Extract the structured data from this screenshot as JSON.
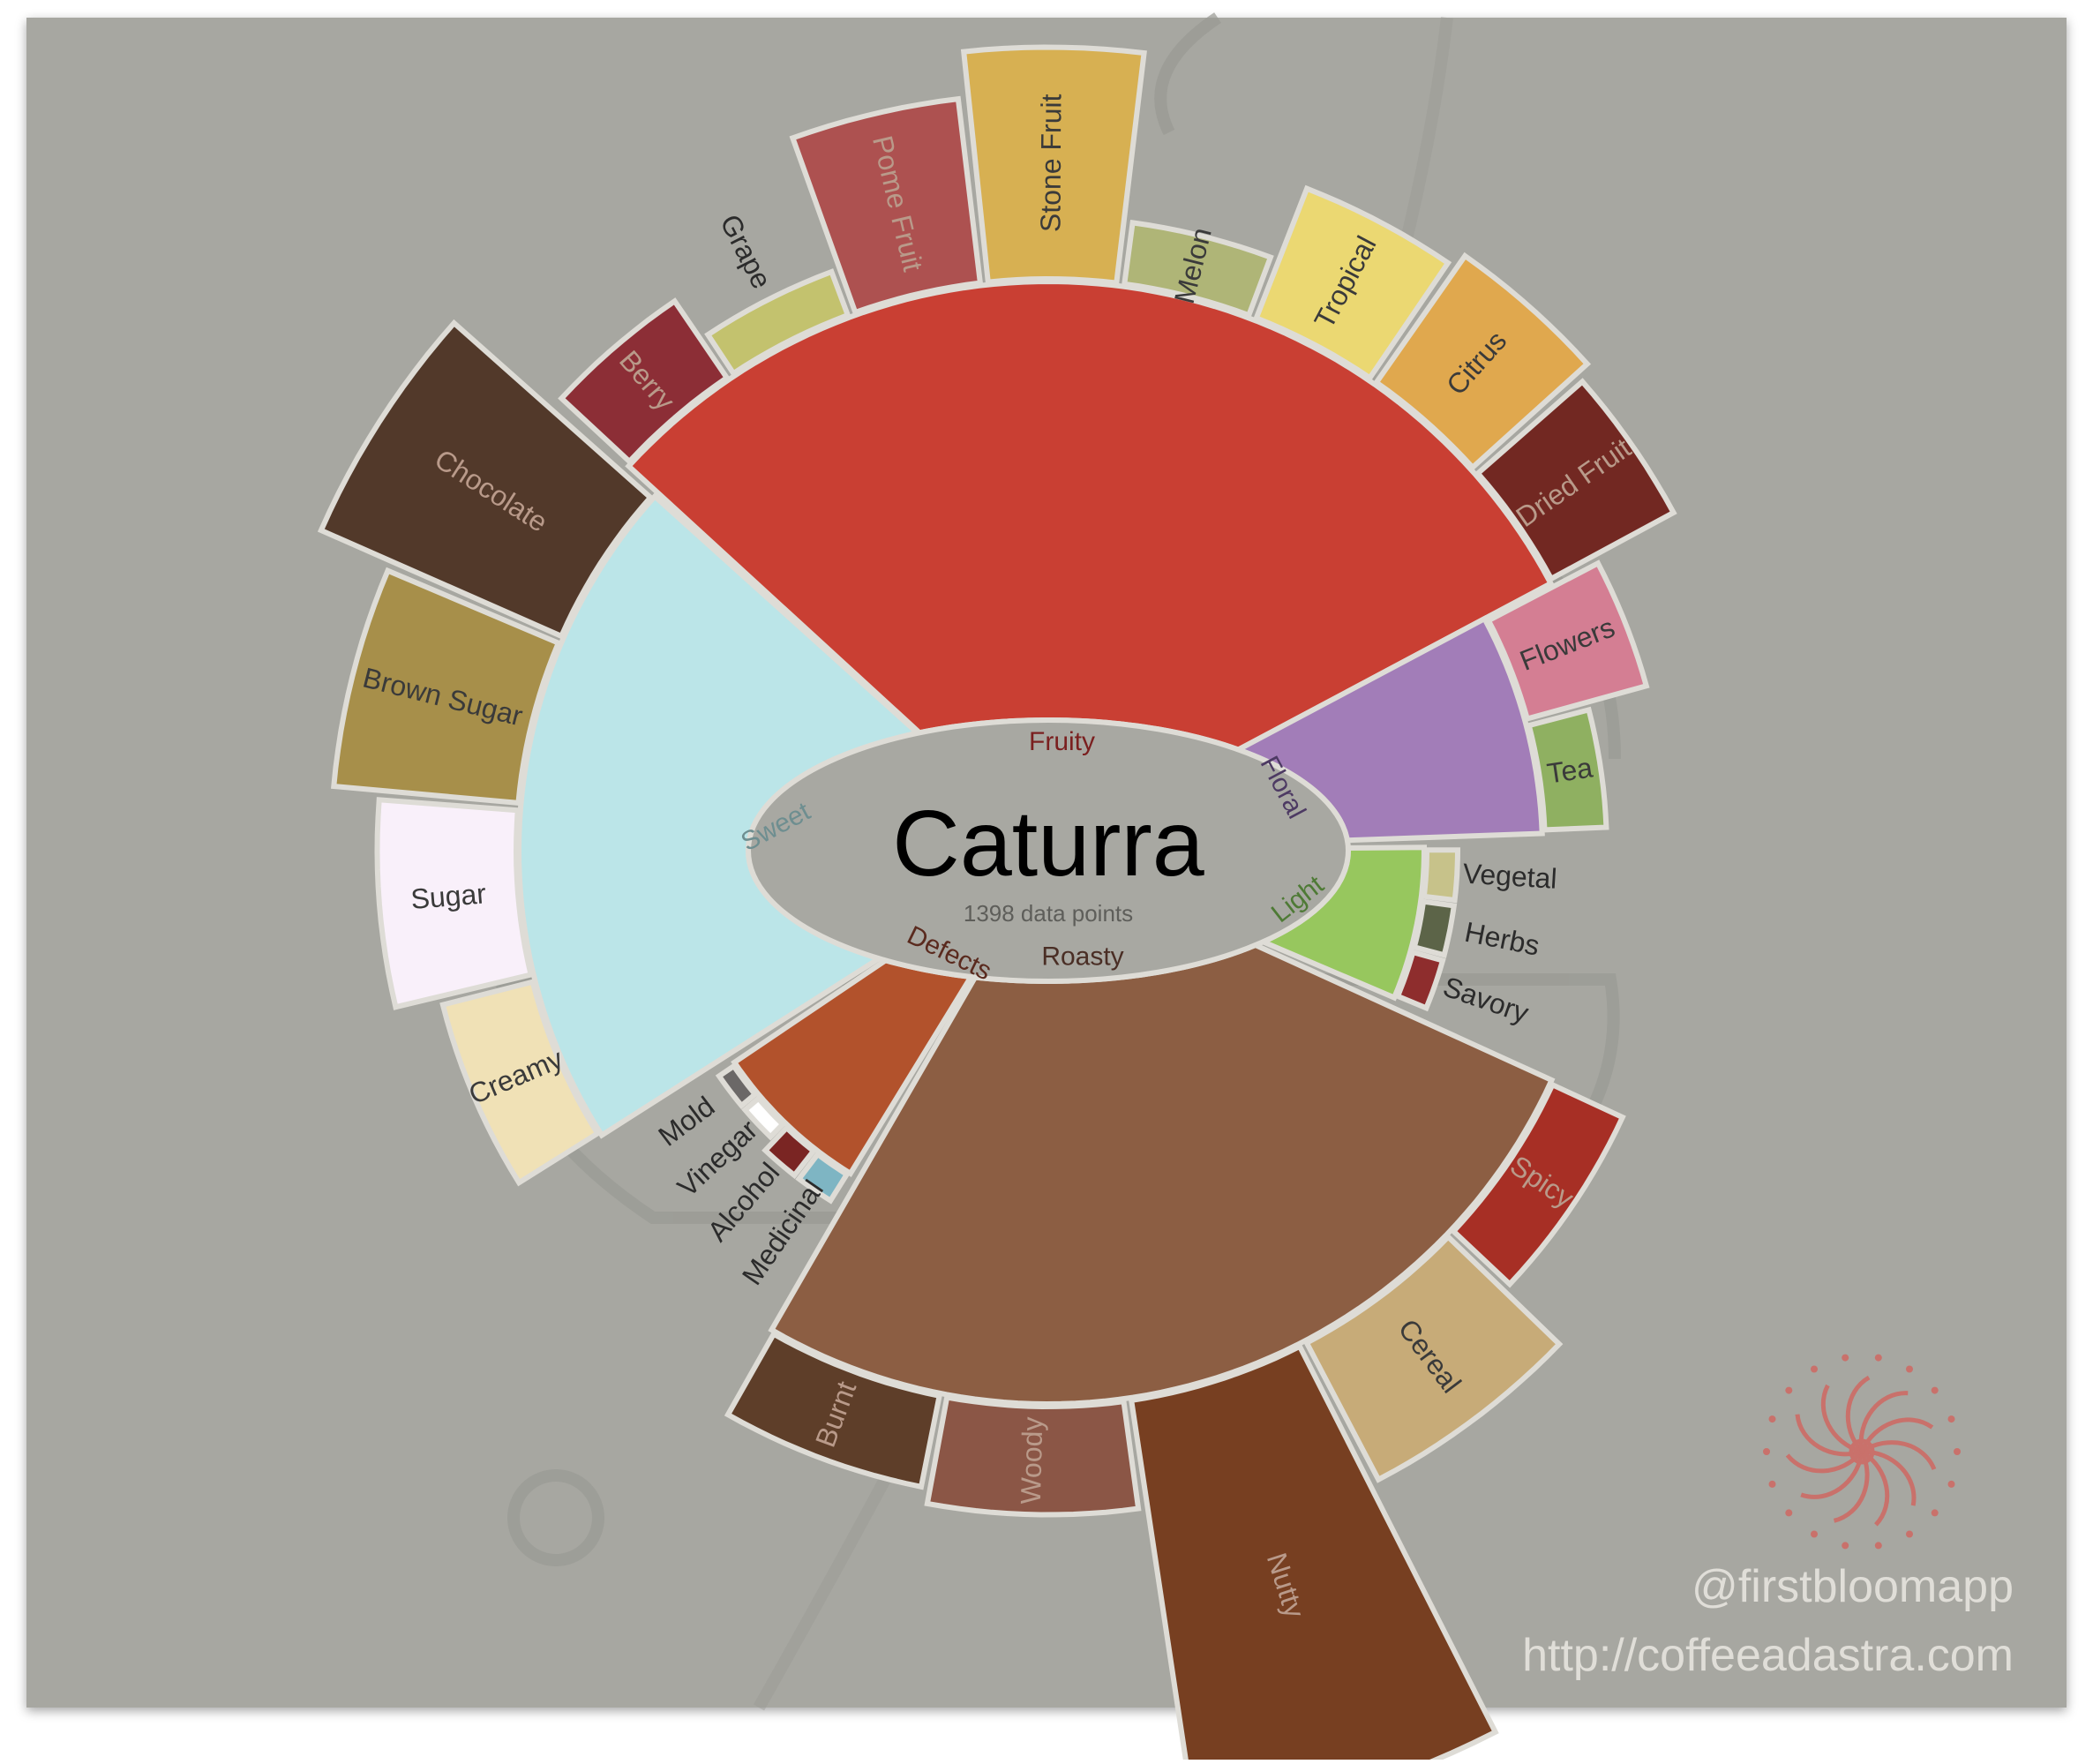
{
  "title": "Caturra",
  "subtitle": "1398 data points",
  "credits": {
    "handle": "@firstbloomapp",
    "url": "http://coffeeadastra.com"
  },
  "colors": {
    "background": "#a7a7a1",
    "segment_stroke": "#dedcd6",
    "center_fill": "#a8a8a2"
  },
  "icons": {
    "logo": "flower-spiral-logo",
    "background": "coffee-cup-watermark-icon"
  },
  "chart_data": {
    "type": "sunburst",
    "categories": [
      {
        "name": "Fruity",
        "value": 36,
        "color": "#c93f33",
        "label_color": "#7a1f1f",
        "children": [
          {
            "name": "Berry",
            "value": 6,
            "color": "#8c2e36"
          },
          {
            "name": "Grape",
            "value": 3,
            "color": "#c3c26e"
          },
          {
            "name": "Pome Fruit",
            "value": 12,
            "color": "#ad5150"
          },
          {
            "name": "Stone Fruit",
            "value": 15,
            "color": "#d7b052"
          },
          {
            "name": "Melon",
            "value": 4,
            "color": "#afb577"
          },
          {
            "name": "Tropical",
            "value": 9,
            "color": "#ebd872"
          },
          {
            "name": "Citrus",
            "value": 10,
            "color": "#e0a84e"
          },
          {
            "name": "Dried Fruit",
            "value": 9,
            "color": "#722822"
          }
        ]
      },
      {
        "name": "Floral",
        "value": 8,
        "color": "#a27db8",
        "label_color": "#4d3a63",
        "children": [
          {
            "name": "Flowers",
            "value": 8,
            "color": "#d47e93"
          },
          {
            "name": "Tea",
            "value": 4,
            "color": "#8fb061"
          }
        ]
      },
      {
        "name": "Light",
        "value": 2,
        "color": "#97c75e",
        "label_color": "#4e7a35",
        "children": [
          {
            "name": "Vegetal",
            "value": 2,
            "color": "#c7c28a"
          },
          {
            "name": "Herbs",
            "value": 2,
            "color": "#5c6448"
          },
          {
            "name": "Savory",
            "value": 2,
            "color": "#8e2d2d"
          }
        ]
      },
      {
        "name": "Roasty",
        "value": 30,
        "color": "#8c5e43",
        "label_color": "#4a2e25",
        "children": [
          {
            "name": "Spicy",
            "value": 5,
            "color": "#a72f25"
          },
          {
            "name": "Cereal",
            "value": 10,
            "color": "#c7ab78"
          },
          {
            "name": "Nutty",
            "value": 28,
            "color": "#773f21"
          },
          {
            "name": "Woody",
            "value": 7,
            "color": "#8b5646"
          },
          {
            "name": "Burnt",
            "value": 6,
            "color": "#5e3e29"
          }
        ]
      },
      {
        "name": "Defects",
        "value": 3,
        "color": "#b2522c",
        "label_color": "#5a2a1e",
        "children": [
          {
            "name": "Medicinal",
            "value": 2,
            "color": "#7eb5c3"
          },
          {
            "name": "Alcohol",
            "value": 2,
            "color": "#7a2523"
          },
          {
            "name": "Vinegar",
            "value": 1,
            "color": "#ffffff"
          },
          {
            "name": "Mold",
            "value": 1,
            "color": "#6b6867"
          }
        ]
      },
      {
        "name": "Sweet",
        "value": 21,
        "color": "#bbe5e8",
        "label_color": "#6e8e90",
        "children": [
          {
            "name": "Creamy",
            "value": 6,
            "color": "#f0e1b6"
          },
          {
            "name": "Sugar",
            "value": 9,
            "color": "#f9f0fa"
          },
          {
            "name": "Brown Sugar",
            "value": 12,
            "color": "#a78f4a"
          },
          {
            "name": "Chocolate",
            "value": 17,
            "color": "#52392a"
          }
        ]
      }
    ]
  }
}
